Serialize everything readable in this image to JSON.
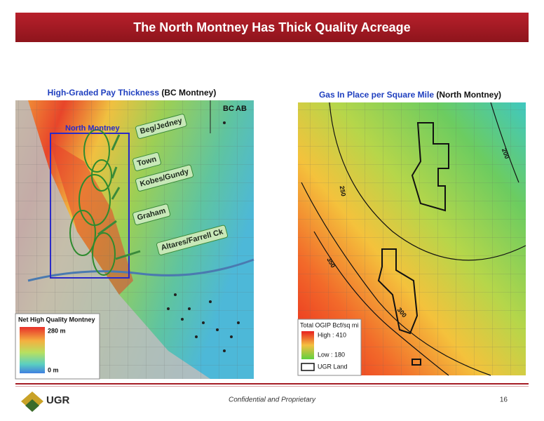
{
  "header": {
    "title": "The North Montney Has Thick Quality Acreage"
  },
  "left_map": {
    "caption_highlight": "High-Graded Pay Thickness",
    "caption_rest": "(BC Montney)",
    "province_left": "BC",
    "province_right": "AB",
    "area_label": "North Montney",
    "callouts": [
      "Beg/Jedney",
      "Town",
      "Kobes/Gundy",
      "Graham",
      "Altares/Farrell Ck"
    ],
    "legend": {
      "title": "Net High Quality Montney",
      "high": "280 m",
      "low": "0 m"
    }
  },
  "right_map": {
    "caption_highlight": "Gas In Place per Square Mile",
    "caption_rest": "(North Montney)",
    "contours": [
      "200",
      "250",
      "350",
      "300"
    ],
    "legend": {
      "title": "Total OGIP Bcf/sq mi",
      "high": "High : 410",
      "low": "Low : 180",
      "land": "UGR Land"
    }
  },
  "footer": {
    "text": "Confidential and Proprietary",
    "page": "16",
    "logo": "UGR"
  }
}
